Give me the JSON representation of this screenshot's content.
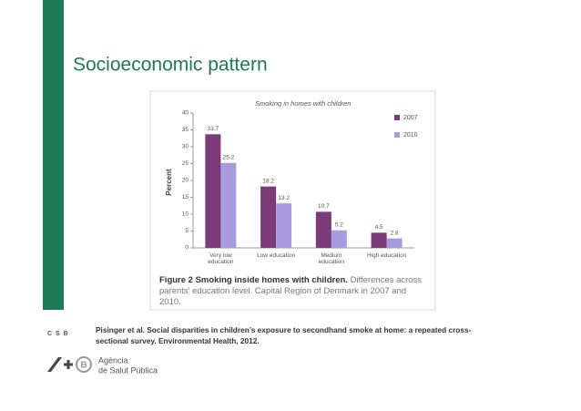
{
  "slide": {
    "title": "Socioeconomic pattern",
    "source_label": "C S B",
    "citation": "Pisinger et al. Social disparities in children’s exposure to secondhand smoke at home: a repeated cross-sectional survey. Environmental Health, 2012.",
    "logo_line1": "Agència",
    "logo_line2": "de Salut Pública"
  },
  "chart_data": {
    "type": "bar",
    "title": "Smoking in homes with children",
    "ylabel": "Percent",
    "categories": [
      "Very low education",
      "Low education",
      "Medium education",
      "High education"
    ],
    "series": [
      {
        "name": "2007",
        "color": "#7b3a78",
        "values": [
          33.7,
          18.2,
          10.7,
          4.5
        ]
      },
      {
        "name": "2010",
        "color": "#a99be0",
        "values": [
          25.2,
          13.2,
          5.2,
          2.8
        ]
      }
    ],
    "ylim": [
      0,
      40
    ],
    "yticks": [
      0,
      5,
      10,
      15,
      20,
      25,
      30,
      35,
      40
    ],
    "caption_bold": "Figure 2 Smoking inside homes with children.",
    "caption": "Differences across parents' education level. Capital Region of Denmark in 2007 and 2010."
  }
}
